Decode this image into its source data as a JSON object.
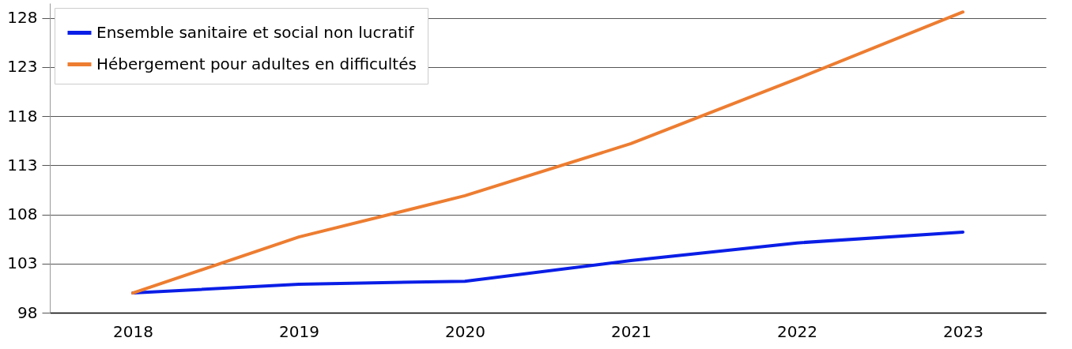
{
  "chart_data": {
    "type": "line",
    "categories": [
      "2018",
      "2019",
      "2020",
      "2021",
      "2022",
      "2023"
    ],
    "series": [
      {
        "name": "Ensemble sanitaire et social non lucratif",
        "color": "#0a1ee6",
        "values": [
          100,
          100.9,
          101.2,
          103.3,
          105.1,
          106.2
        ]
      },
      {
        "name": "Hébergement pour adultes en difficultés",
        "color": "#ed7d31",
        "values": [
          100,
          105.7,
          109.9,
          115.2,
          121.8,
          128.6
        ]
      }
    ],
    "ylim": [
      98,
      129.5
    ],
    "yticks": [
      98,
      103,
      108,
      113,
      118,
      123,
      128
    ],
    "grid": "y",
    "legend": "top left",
    "marker": "none",
    "line_style": "solid"
  }
}
